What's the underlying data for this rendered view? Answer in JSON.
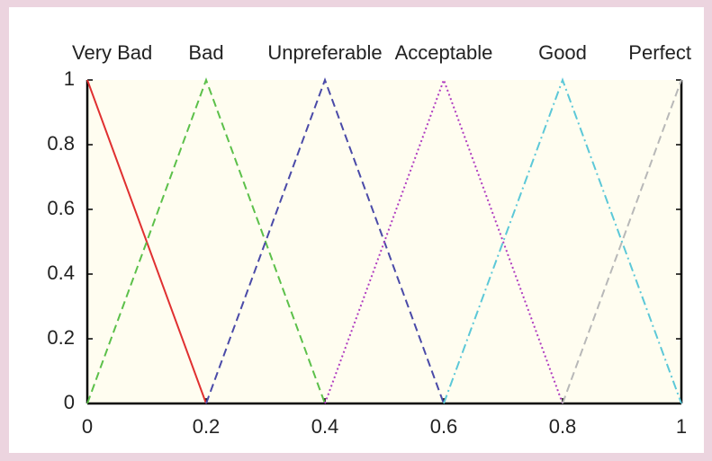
{
  "chart_data": {
    "type": "line",
    "xlim": [
      0,
      1
    ],
    "xticks": [
      0,
      0.2,
      0.4,
      0.6,
      0.8,
      1
    ],
    "ylim": [
      0,
      1
    ],
    "yticks": [
      0,
      0.2,
      0.4,
      0.6,
      0.8,
      1
    ],
    "series": [
      {
        "name": "Very Bad",
        "color": "#e03030",
        "dash": "solid",
        "x": [
          0,
          0.2
        ],
        "values": [
          1,
          0
        ]
      },
      {
        "name": "Bad",
        "color": "#5cc04a",
        "dash": "dashed",
        "x": [
          0,
          0.2,
          0.4
        ],
        "values": [
          0,
          1,
          0
        ]
      },
      {
        "name": "Unpreferable",
        "color": "#4a4aa8",
        "dash": "dashed",
        "x": [
          0.2,
          0.4,
          0.6
        ],
        "values": [
          0,
          1,
          0
        ]
      },
      {
        "name": "Acceptable",
        "color": "#b03cc0",
        "dash": "dotted",
        "x": [
          0.4,
          0.6,
          0.8
        ],
        "values": [
          0,
          1,
          0
        ]
      },
      {
        "name": "Good",
        "color": "#5cc8d8",
        "dash": "dashdot",
        "x": [
          0.6,
          0.8,
          1
        ],
        "values": [
          0,
          1,
          0
        ]
      },
      {
        "name": "Perfect",
        "color": "#b8b8b8",
        "dash": "dashed",
        "x": [
          0.8,
          1
        ],
        "values": [
          0,
          1
        ]
      }
    ]
  }
}
